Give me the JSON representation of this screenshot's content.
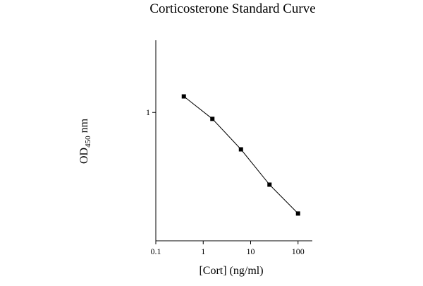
{
  "chart_data": {
    "type": "line",
    "title": "Corticosterone Standard Curve",
    "xlabel": "[Cort] (ng/ml)",
    "ylabel": {
      "prefix": "OD",
      "subscript": "450",
      "suffix": " nm"
    },
    "x_scale": "log",
    "xlim": [
      0.1,
      200
    ],
    "ylim": [
      0.2,
      1.45
    ],
    "x_ticks": [
      {
        "value": 0.1,
        "label": "0.1"
      },
      {
        "value": 1,
        "label": "1"
      },
      {
        "value": 10,
        "label": "10"
      },
      {
        "value": 100,
        "label": "100"
      }
    ],
    "y_ticks": [
      {
        "value": 1,
        "label": "1"
      }
    ],
    "grid": false,
    "legend": "none",
    "series": [
      {
        "marker": "square",
        "color": "#000000",
        "points": [
          {
            "x": 0.39,
            "y": 1.1
          },
          {
            "x": 1.56,
            "y": 0.96
          },
          {
            "x": 6.25,
            "y": 0.77
          },
          {
            "x": 25,
            "y": 0.55
          },
          {
            "x": 100,
            "y": 0.37
          }
        ]
      }
    ]
  }
}
